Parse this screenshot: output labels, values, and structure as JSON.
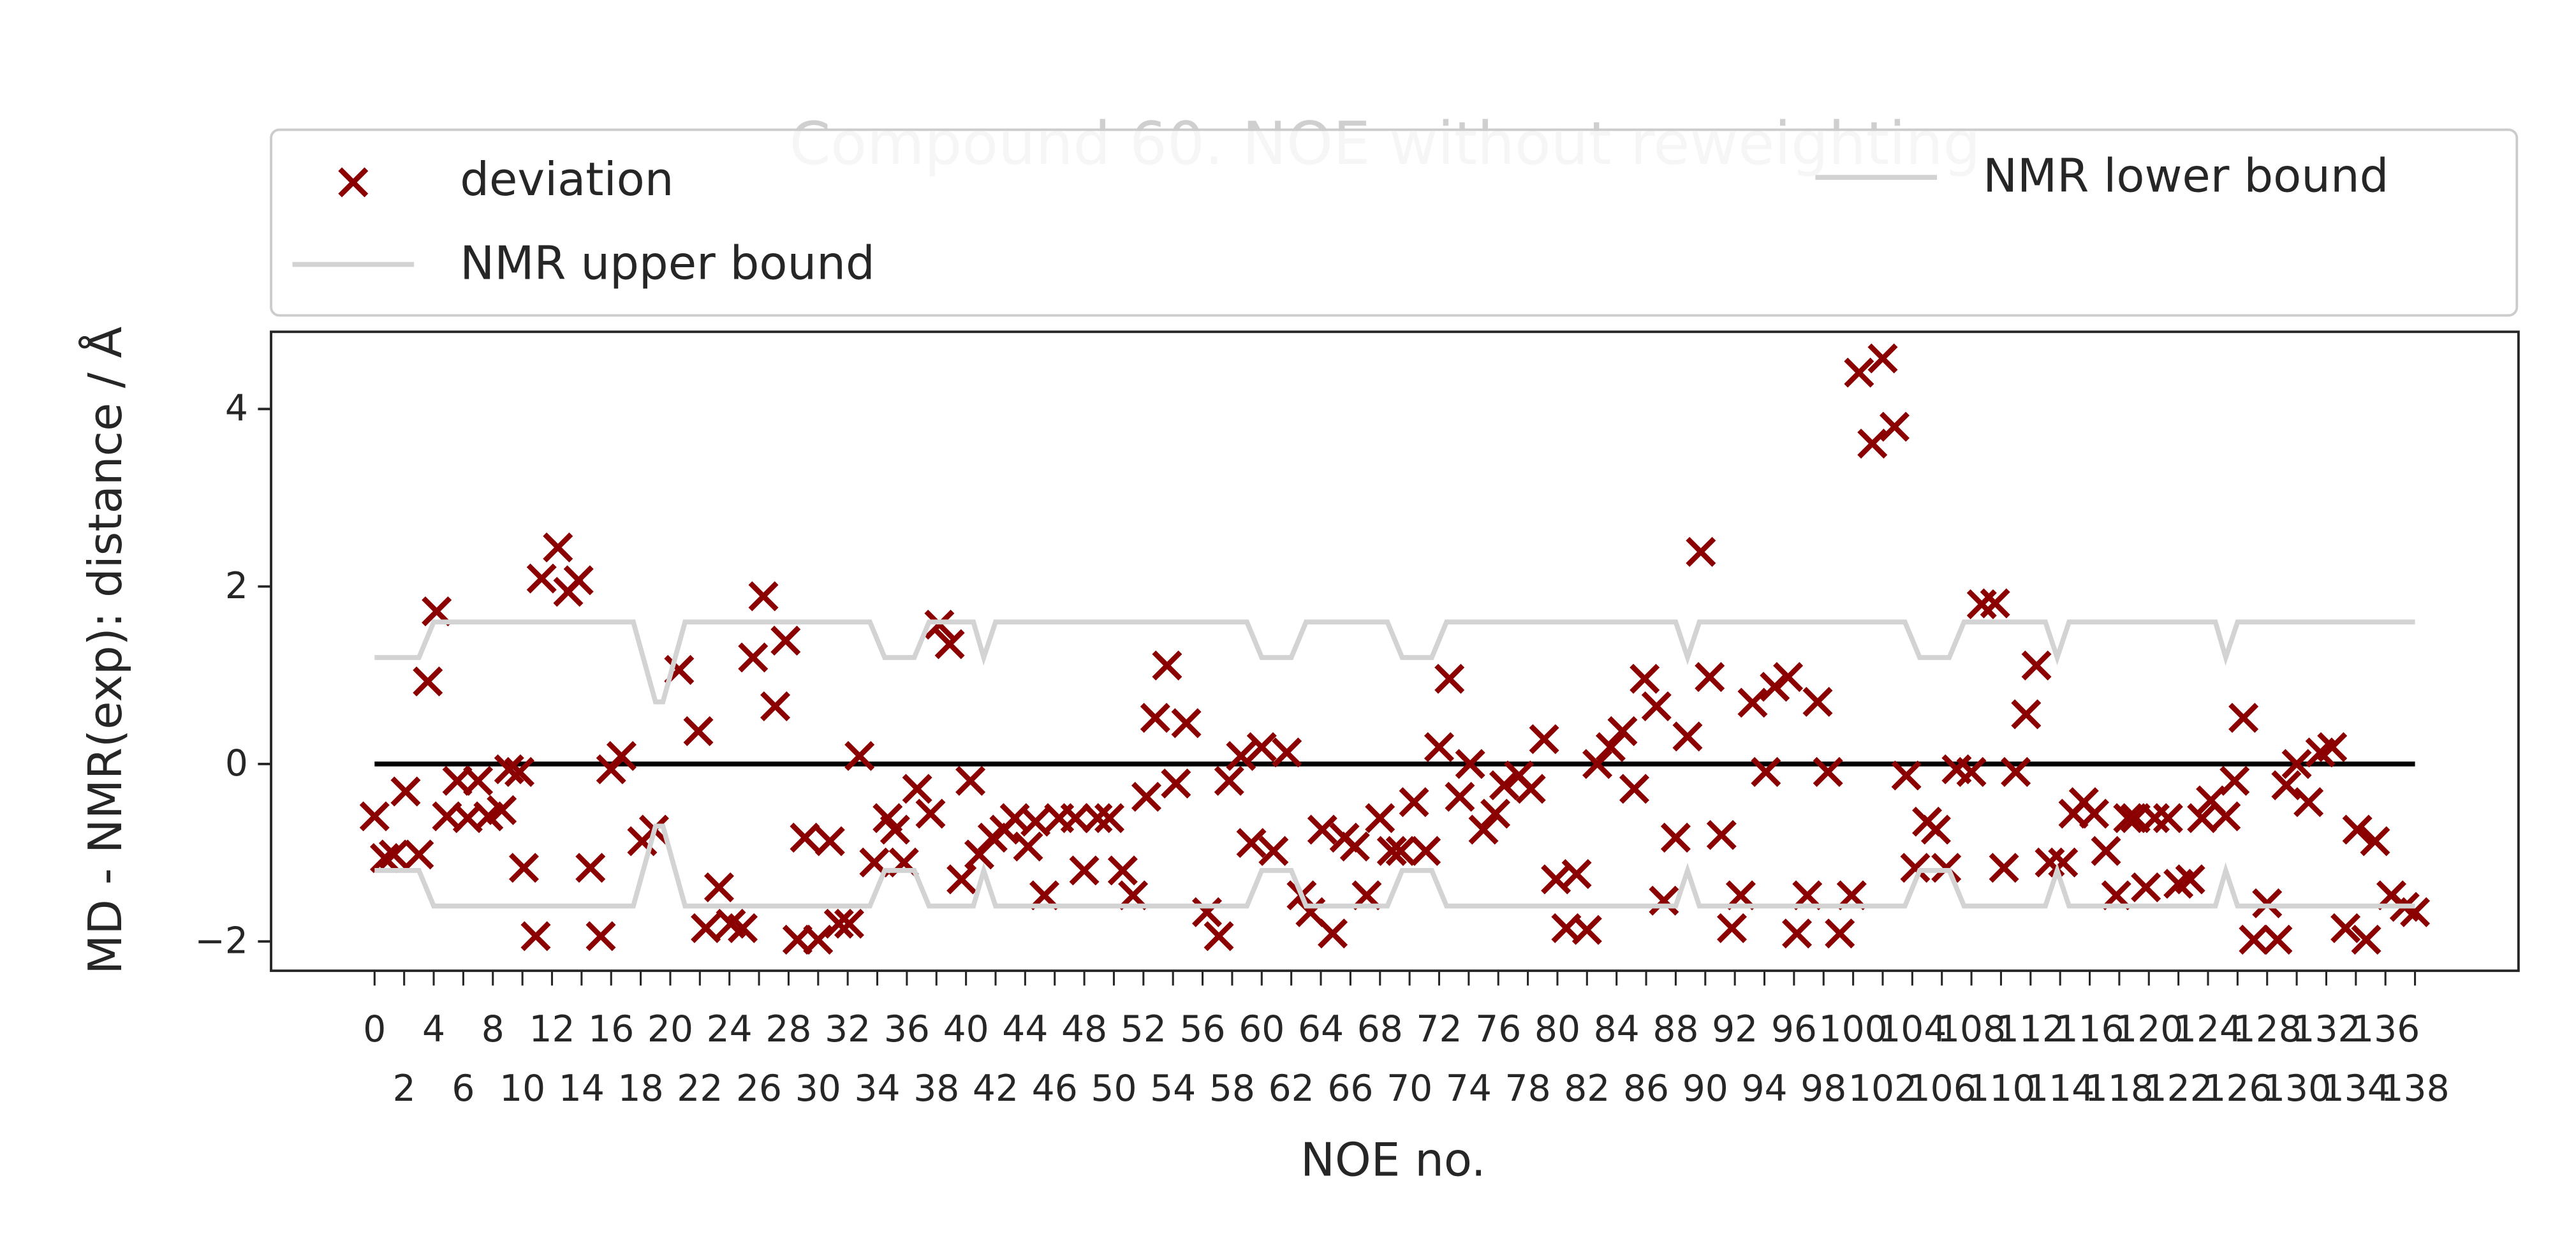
{
  "chart_data": {
    "type": "scatter",
    "title": "Compound 60. NOE without reweighting",
    "xlabel": "NOE no.",
    "ylabel": "MD - NMR(exp): distance / Å",
    "xlim": [
      -7,
      145
    ],
    "ylim": [
      -2.33,
      4.87
    ],
    "yticks": [
      {
        "value": -2,
        "label": "−2"
      },
      0,
      2,
      4
    ],
    "xticks": [
      0,
      2,
      4,
      6,
      8,
      10,
      12,
      14,
      16,
      18,
      20,
      22,
      24,
      26,
      28,
      30,
      32,
      34,
      36,
      38,
      40,
      42,
      44,
      46,
      48,
      50,
      52,
      54,
      56,
      58,
      60,
      62,
      64,
      66,
      68,
      70,
      72,
      74,
      76,
      78,
      80,
      82,
      84,
      86,
      88,
      90,
      92,
      94,
      96,
      98,
      100,
      102,
      104,
      106,
      108,
      110,
      112,
      114,
      116,
      118,
      120,
      122,
      124,
      126,
      128,
      130,
      132,
      134,
      136,
      138
    ],
    "legend": "upper center",
    "zero_line": {
      "y": 0,
      "color": "#000000"
    },
    "series": [
      {
        "name": "deviation",
        "kind": "marker",
        "color": "#8b0000",
        "x": [
          0,
          0.7,
          1.3,
          2.1,
          3,
          3.6,
          4.2,
          4.9,
          5.6,
          6.3,
          7,
          7.7,
          8.6,
          9.1,
          9.8,
          10.1,
          10.9,
          11.3,
          12.4,
          13.1,
          13.8,
          14.6,
          15.3,
          16,
          16.7,
          18.1,
          18.9,
          20.6,
          21.9,
          22.4,
          23.3,
          24.1,
          24.9,
          25.6,
          26.3,
          27.1,
          27.8,
          28.6,
          29.1,
          30,
          30.8,
          31.4,
          32.1,
          32.8,
          33.8,
          34.7,
          35.2,
          35.8,
          36.7,
          37.6,
          38.2,
          38.9,
          39.7,
          40.3,
          40.9,
          41.8,
          42.6,
          43.3,
          44.2,
          44.7,
          45.3,
          46.3,
          47.4,
          48,
          48.9,
          49.7,
          50.6,
          51.3,
          52.2,
          52.8,
          53.6,
          54.2,
          54.9,
          56.3,
          57.1,
          57.8,
          58.6,
          59.3,
          60,
          60.8,
          61.7,
          62.7,
          63.3,
          64.1,
          64.8,
          65.6,
          66.3,
          67.1,
          68,
          68.8,
          69.4,
          70.3,
          71.1,
          72,
          72.7,
          73.4,
          74.1,
          75,
          75.8,
          76.4,
          77.4,
          78.2,
          79.1,
          79.9,
          80.6,
          81.3,
          82,
          82.7,
          83.6,
          84.4,
          85.2,
          85.9,
          86.7,
          87.2,
          88,
          88.8,
          89.7,
          90.3,
          91.1,
          91.8,
          92.4,
          93.2,
          94.1,
          94.7,
          95.6,
          96.2,
          96.9,
          97.6,
          98.3,
          99.1,
          99.9,
          100.4,
          101.3,
          102,
          102.8,
          103.6,
          104.2,
          105,
          105.6,
          106.3,
          107,
          108,
          108.7,
          109.6,
          110.2,
          111,
          111.7,
          112.4,
          113.3,
          114.2,
          114.9,
          115.6,
          116.3,
          117.1,
          117.8,
          118.6,
          119.1,
          119.8,
          120.4,
          121.3,
          122,
          122.8,
          123.6,
          124.2,
          125.2,
          125.8,
          126.4,
          127.1,
          128,
          128.7,
          129.3,
          130,
          130.8,
          131.6,
          132.4,
          133.3,
          134.1,
          134.7,
          135.3,
          136.4,
          137.3,
          138
        ],
        "values": [
          -0.59,
          -1.06,
          -1.02,
          -0.31,
          -1.02,
          0.93,
          1.72,
          -0.59,
          -0.19,
          -0.61,
          -0.19,
          -0.59,
          -0.52,
          -0.06,
          -0.09,
          -1.17,
          -1.94,
          2.09,
          2.44,
          1.94,
          2.07,
          -1.17,
          -1.94,
          -0.06,
          0.09,
          -0.87,
          -0.74,
          1.06,
          0.37,
          -1.85,
          -1.39,
          -1.8,
          -1.85,
          1.2,
          1.89,
          0.65,
          1.39,
          -1.98,
          -0.83,
          -1.98,
          -0.87,
          -1.8,
          -1.8,
          0.09,
          -1.11,
          -0.61,
          -0.74,
          -1.11,
          -0.28,
          -0.56,
          1.57,
          1.35,
          -1.3,
          -0.19,
          -1.02,
          -0.83,
          -0.74,
          -0.61,
          -0.93,
          -0.65,
          -1.48,
          -0.61,
          -0.61,
          -1.2,
          -0.61,
          -0.61,
          -1.2,
          -1.48,
          -0.37,
          0.52,
          1.11,
          -0.22,
          0.46,
          -1.67,
          -1.94,
          -0.19,
          0.09,
          -0.89,
          0.19,
          -0.98,
          0.13,
          -1.48,
          -1.67,
          -0.74,
          -1.91,
          -0.83,
          -0.93,
          -1.48,
          -0.61,
          -0.98,
          -0.98,
          -0.43,
          -0.98,
          0.19,
          0.96,
          -0.37,
          0,
          -0.74,
          -0.56,
          -0.24,
          -0.13,
          -0.28,
          0.28,
          -1.3,
          -1.85,
          -1.24,
          -1.87,
          0,
          0.19,
          0.37,
          -0.28,
          0.96,
          0.65,
          -1.54,
          -0.83,
          0.31,
          2.39,
          0.98,
          -0.8,
          -1.85,
          -1.48,
          0.69,
          -0.09,
          0.87,
          0.98,
          -1.91,
          -1.48,
          0.7,
          -0.09,
          -1.91,
          -1.48,
          4.41,
          3.61,
          4.57,
          3.8,
          -0.13,
          -1.17,
          -0.65,
          -0.74,
          -1.17,
          -0.06,
          -0.09,
          1.8,
          1.81,
          -1.17,
          -0.09,
          0.56,
          1.11,
          -1.11,
          -1.11,
          -0.56,
          -0.43,
          -0.56,
          -0.98,
          -1.48,
          -0.61,
          -0.61,
          -1.39,
          -0.61,
          -0.61,
          -1.35,
          -1.3,
          -0.61,
          -0.41,
          -0.59,
          -0.19,
          0.52,
          -1.98,
          -1.57,
          -1.98,
          -0.24,
          0,
          -0.43,
          0.13,
          0.19,
          -1.85,
          -0.74,
          -1.98,
          -0.87,
          -1.48,
          -1.61,
          -1.67
        ]
      },
      {
        "name": "NMR upper bound",
        "kind": "line",
        "color": "#d3d3d3",
        "x": [
          0,
          3,
          4,
          17.5,
          19,
          19.5,
          21,
          33.5,
          34.5,
          36.5,
          37.5,
          40.5,
          41.2,
          42,
          59,
          60,
          62,
          63,
          68.5,
          69.5,
          71.5,
          72.5,
          88,
          88.8,
          89.6,
          103.5,
          104.5,
          106.5,
          107.5,
          113,
          113.8,
          114.6,
          124.5,
          125.2,
          126,
          138
        ],
        "values": [
          1.2,
          1.2,
          1.6,
          1.6,
          0.7,
          0.7,
          1.6,
          1.6,
          1.2,
          1.2,
          1.6,
          1.6,
          1.2,
          1.6,
          1.6,
          1.2,
          1.2,
          1.6,
          1.6,
          1.2,
          1.2,
          1.6,
          1.6,
          1.2,
          1.6,
          1.6,
          1.2,
          1.2,
          1.6,
          1.6,
          1.2,
          1.6,
          1.6,
          1.2,
          1.6,
          1.6
        ]
      },
      {
        "name": "NMR lower bound",
        "kind": "line",
        "color": "#d3d3d3",
        "x": [
          0,
          3,
          4,
          17.5,
          19,
          19.5,
          21,
          33.5,
          34.5,
          36.5,
          37.5,
          40.5,
          41.2,
          42,
          59,
          60,
          62,
          63,
          68.5,
          69.5,
          71.5,
          72.5,
          88,
          88.8,
          89.6,
          103.5,
          104.5,
          106.5,
          107.5,
          113,
          113.8,
          114.6,
          124.5,
          125.2,
          126,
          138
        ],
        "values": [
          -1.2,
          -1.2,
          -1.6,
          -1.6,
          -0.7,
          -0.7,
          -1.6,
          -1.6,
          -1.2,
          -1.2,
          -1.6,
          -1.6,
          -1.2,
          -1.6,
          -1.6,
          -1.2,
          -1.2,
          -1.6,
          -1.6,
          -1.2,
          -1.2,
          -1.6,
          -1.6,
          -1.2,
          -1.6,
          -1.6,
          -1.2,
          -1.2,
          -1.6,
          -1.6,
          -1.2,
          -1.6,
          -1.6,
          -1.2,
          -1.6,
          -1.6
        ]
      }
    ]
  }
}
